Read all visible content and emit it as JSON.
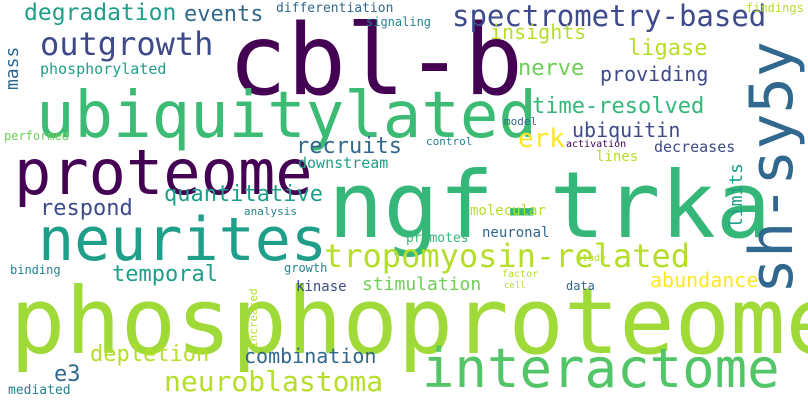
{
  "palette": {
    "background": "#ffffff",
    "dark_purple": "#440154",
    "indigo": "#3e4a89",
    "blue": "#31688e",
    "teal": "#26828e",
    "teal_green": "#1f9e89",
    "green": "#35b779",
    "light_green": "#6ece58",
    "yellow_green": "#b5de2b",
    "yellow": "#fde725"
  },
  "words": [
    "cbl-b",
    "phosphoproteome",
    "ngf-trka",
    "ubiquitylated",
    "proteome",
    "interactome",
    "sh-sy5y",
    "neurites",
    "tropomyosin-related",
    "outgrowth",
    "spectrometry-based",
    "neuroblastoma",
    "degradation",
    "events",
    "insights",
    "ligase",
    "nerve",
    "providing",
    "time-resolved",
    "ubiquitin",
    "recruits",
    "erk",
    "quantitative",
    "respond",
    "temporal",
    "depletion",
    "combination",
    "abundance",
    "stimulation",
    "mass",
    "phosphorylated",
    "e3",
    "limits",
    "decreases",
    "downstream",
    "differentiation",
    "signaling",
    "findings",
    "performed",
    "control",
    "activation",
    "model",
    "lines",
    "molecular",
    "neuronal",
    "promotes",
    "analysis",
    "study",
    "binding",
    "growth",
    "kinase",
    "increased",
    "factor",
    "cell",
    "data",
    "mediated"
  ]
}
